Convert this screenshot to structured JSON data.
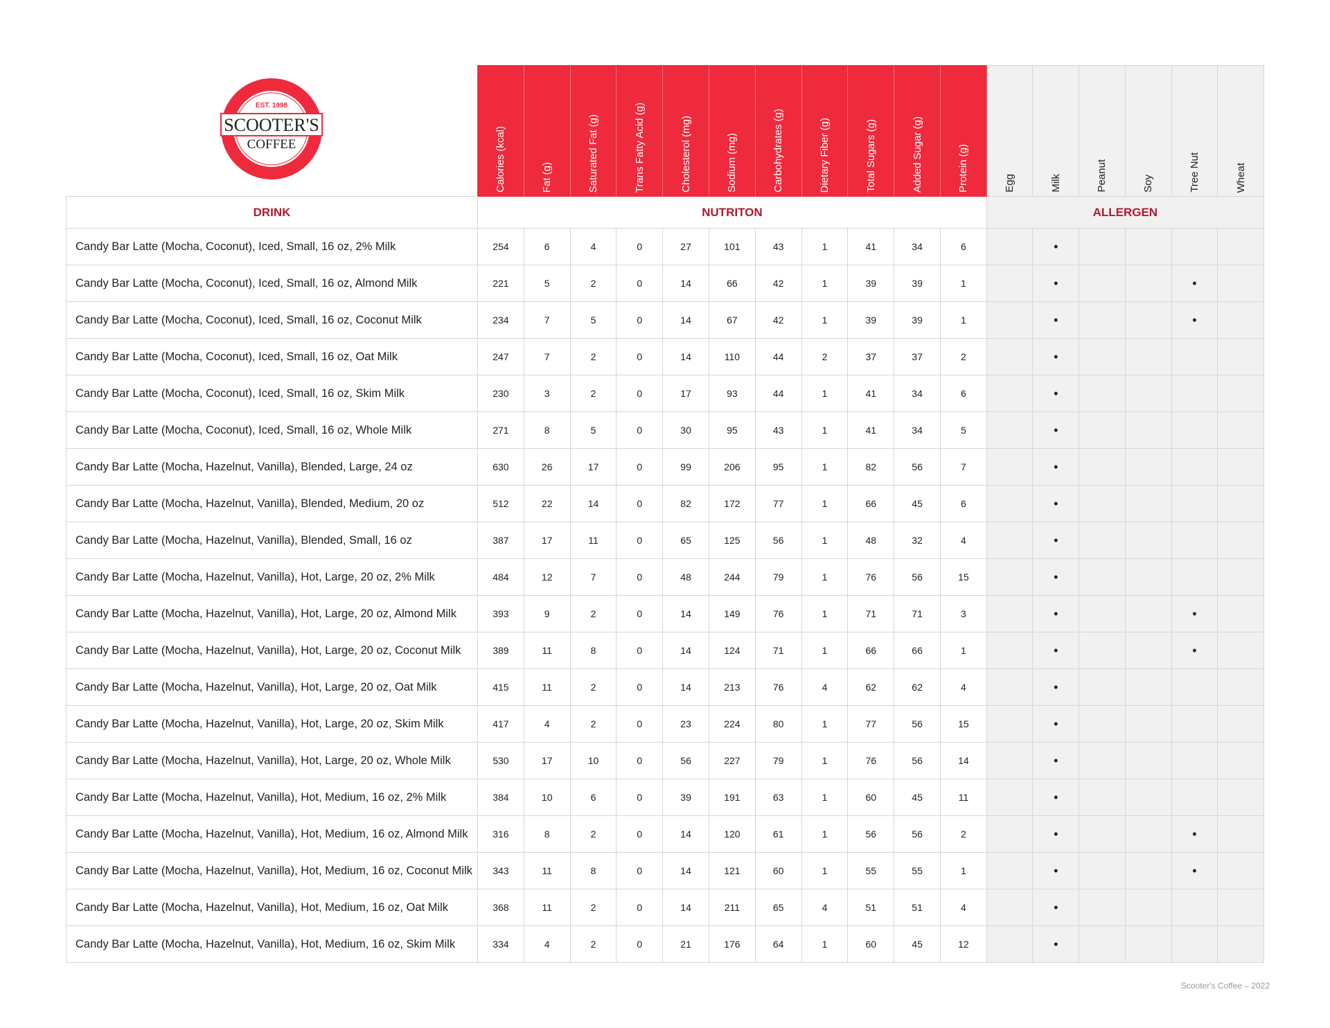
{
  "logo": {
    "est": "EST. 1998",
    "name": "SCOOTER'S",
    "sub": "COFFEE",
    "mark": "®",
    "colors": {
      "red": "#ee2a3c",
      "text": "#222222"
    }
  },
  "colors": {
    "nutrition_header": "#ee2a3c",
    "section_text": "#b0192e",
    "allergen_bg": "#f1f1f1"
  },
  "sections": {
    "drink": "DRINK",
    "nutrition": "NUTRITON",
    "allergen": "ALLERGEN"
  },
  "nutrition_columns": [
    "Calories (kcal)",
    "Fat (g)",
    "Saturated Fat (g)",
    "Trans Fatty Acid (g)",
    "Cholesterol (mg)",
    "Sodium (mg)",
    "Carbohydrates (g)",
    "Dietary Fiber (g)",
    "Total Sugars (g)",
    "Added Sugar (g)",
    "Protein (g)"
  ],
  "allergen_columns": [
    "Egg",
    "Milk",
    "Peanut",
    "Soy",
    "Tree Nut",
    "Wheat"
  ],
  "allergen_mark": "•",
  "rows": [
    {
      "drink": "Candy Bar Latte (Mocha, Coconut), Iced, Small, 16 oz, 2% Milk",
      "values": [
        "254",
        "6",
        "4",
        "0",
        "27",
        "101",
        "43",
        "1",
        "41",
        "34",
        "6"
      ],
      "allergens": [
        false,
        true,
        false,
        false,
        false,
        false
      ]
    },
    {
      "drink": "Candy Bar Latte (Mocha, Coconut), Iced, Small, 16 oz, Almond Milk",
      "values": [
        "221",
        "5",
        "2",
        "0",
        "14",
        "66",
        "42",
        "1",
        "39",
        "39",
        "1"
      ],
      "allergens": [
        false,
        true,
        false,
        false,
        true,
        false
      ]
    },
    {
      "drink": "Candy Bar Latte (Mocha, Coconut), Iced, Small, 16 oz, Coconut Milk",
      "values": [
        "234",
        "7",
        "5",
        "0",
        "14",
        "67",
        "42",
        "1",
        "39",
        "39",
        "1"
      ],
      "allergens": [
        false,
        true,
        false,
        false,
        true,
        false
      ]
    },
    {
      "drink": "Candy Bar Latte (Mocha, Coconut), Iced, Small, 16 oz, Oat Milk",
      "values": [
        "247",
        "7",
        "2",
        "0",
        "14",
        "110",
        "44",
        "2",
        "37",
        "37",
        "2"
      ],
      "allergens": [
        false,
        true,
        false,
        false,
        false,
        false
      ]
    },
    {
      "drink": "Candy Bar Latte (Mocha, Coconut), Iced, Small, 16 oz, Skim Milk",
      "values": [
        "230",
        "3",
        "2",
        "0",
        "17",
        "93",
        "44",
        "1",
        "41",
        "34",
        "6"
      ],
      "allergens": [
        false,
        true,
        false,
        false,
        false,
        false
      ]
    },
    {
      "drink": "Candy Bar Latte (Mocha, Coconut), Iced, Small, 16 oz, Whole Milk",
      "values": [
        "271",
        "8",
        "5",
        "0",
        "30",
        "95",
        "43",
        "1",
        "41",
        "34",
        "5"
      ],
      "allergens": [
        false,
        true,
        false,
        false,
        false,
        false
      ]
    },
    {
      "drink": "Candy Bar Latte (Mocha, Hazelnut, Vanilla), Blended, Large, 24 oz",
      "values": [
        "630",
        "26",
        "17",
        "0",
        "99",
        "206",
        "95",
        "1",
        "82",
        "56",
        "7"
      ],
      "allergens": [
        false,
        true,
        false,
        false,
        false,
        false
      ]
    },
    {
      "drink": "Candy Bar Latte (Mocha, Hazelnut, Vanilla), Blended, Medium, 20 oz",
      "values": [
        "512",
        "22",
        "14",
        "0",
        "82",
        "172",
        "77",
        "1",
        "66",
        "45",
        "6"
      ],
      "allergens": [
        false,
        true,
        false,
        false,
        false,
        false
      ]
    },
    {
      "drink": "Candy Bar Latte (Mocha, Hazelnut, Vanilla), Blended, Small, 16 oz",
      "values": [
        "387",
        "17",
        "11",
        "0",
        "65",
        "125",
        "56",
        "1",
        "48",
        "32",
        "4"
      ],
      "allergens": [
        false,
        true,
        false,
        false,
        false,
        false
      ]
    },
    {
      "drink": "Candy Bar Latte (Mocha, Hazelnut, Vanilla), Hot, Large, 20 oz, 2% Milk",
      "values": [
        "484",
        "12",
        "7",
        "0",
        "48",
        "244",
        "79",
        "1",
        "76",
        "56",
        "15"
      ],
      "allergens": [
        false,
        true,
        false,
        false,
        false,
        false
      ]
    },
    {
      "drink": "Candy Bar Latte (Mocha, Hazelnut, Vanilla), Hot, Large, 20 oz, Almond Milk",
      "values": [
        "393",
        "9",
        "2",
        "0",
        "14",
        "149",
        "76",
        "1",
        "71",
        "71",
        "3"
      ],
      "allergens": [
        false,
        true,
        false,
        false,
        true,
        false
      ]
    },
    {
      "drink": "Candy Bar Latte (Mocha, Hazelnut, Vanilla), Hot, Large, 20 oz, Coconut Milk",
      "values": [
        "389",
        "11",
        "8",
        "0",
        "14",
        "124",
        "71",
        "1",
        "66",
        "66",
        "1"
      ],
      "allergens": [
        false,
        true,
        false,
        false,
        true,
        false
      ]
    },
    {
      "drink": "Candy Bar Latte (Mocha, Hazelnut, Vanilla), Hot, Large, 20 oz, Oat Milk",
      "values": [
        "415",
        "11",
        "2",
        "0",
        "14",
        "213",
        "76",
        "4",
        "62",
        "62",
        "4"
      ],
      "allergens": [
        false,
        true,
        false,
        false,
        false,
        false
      ]
    },
    {
      "drink": "Candy Bar Latte (Mocha, Hazelnut, Vanilla), Hot, Large, 20 oz, Skim Milk",
      "values": [
        "417",
        "4",
        "2",
        "0",
        "23",
        "224",
        "80",
        "1",
        "77",
        "56",
        "15"
      ],
      "allergens": [
        false,
        true,
        false,
        false,
        false,
        false
      ]
    },
    {
      "drink": "Candy Bar Latte (Mocha, Hazelnut, Vanilla), Hot, Large, 20 oz, Whole Milk",
      "values": [
        "530",
        "17",
        "10",
        "0",
        "56",
        "227",
        "79",
        "1",
        "76",
        "56",
        "14"
      ],
      "allergens": [
        false,
        true,
        false,
        false,
        false,
        false
      ]
    },
    {
      "drink": "Candy Bar Latte (Mocha, Hazelnut, Vanilla), Hot, Medium, 16 oz, 2% Milk",
      "values": [
        "384",
        "10",
        "6",
        "0",
        "39",
        "191",
        "63",
        "1",
        "60",
        "45",
        "11"
      ],
      "allergens": [
        false,
        true,
        false,
        false,
        false,
        false
      ]
    },
    {
      "drink": "Candy Bar Latte (Mocha, Hazelnut, Vanilla), Hot, Medium, 16 oz, Almond Milk",
      "values": [
        "316",
        "8",
        "2",
        "0",
        "14",
        "120",
        "61",
        "1",
        "56",
        "56",
        "2"
      ],
      "allergens": [
        false,
        true,
        false,
        false,
        true,
        false
      ]
    },
    {
      "drink": "Candy Bar Latte (Mocha, Hazelnut, Vanilla), Hot, Medium, 16 oz, Coconut Milk",
      "values": [
        "343",
        "11",
        "8",
        "0",
        "14",
        "121",
        "60",
        "1",
        "55",
        "55",
        "1"
      ],
      "allergens": [
        false,
        true,
        false,
        false,
        true,
        false
      ]
    },
    {
      "drink": "Candy Bar Latte (Mocha, Hazelnut, Vanilla), Hot, Medium, 16 oz, Oat Milk",
      "values": [
        "368",
        "11",
        "2",
        "0",
        "14",
        "211",
        "65",
        "4",
        "51",
        "51",
        "4"
      ],
      "allergens": [
        false,
        true,
        false,
        false,
        false,
        false
      ]
    },
    {
      "drink": "Candy Bar Latte (Mocha, Hazelnut, Vanilla), Hot, Medium, 16 oz, Skim Milk",
      "values": [
        "334",
        "4",
        "2",
        "0",
        "21",
        "176",
        "64",
        "1",
        "60",
        "45",
        "12"
      ],
      "allergens": [
        false,
        true,
        false,
        false,
        false,
        false
      ]
    }
  ],
  "footer": "Scooter's Coffee – 2022"
}
